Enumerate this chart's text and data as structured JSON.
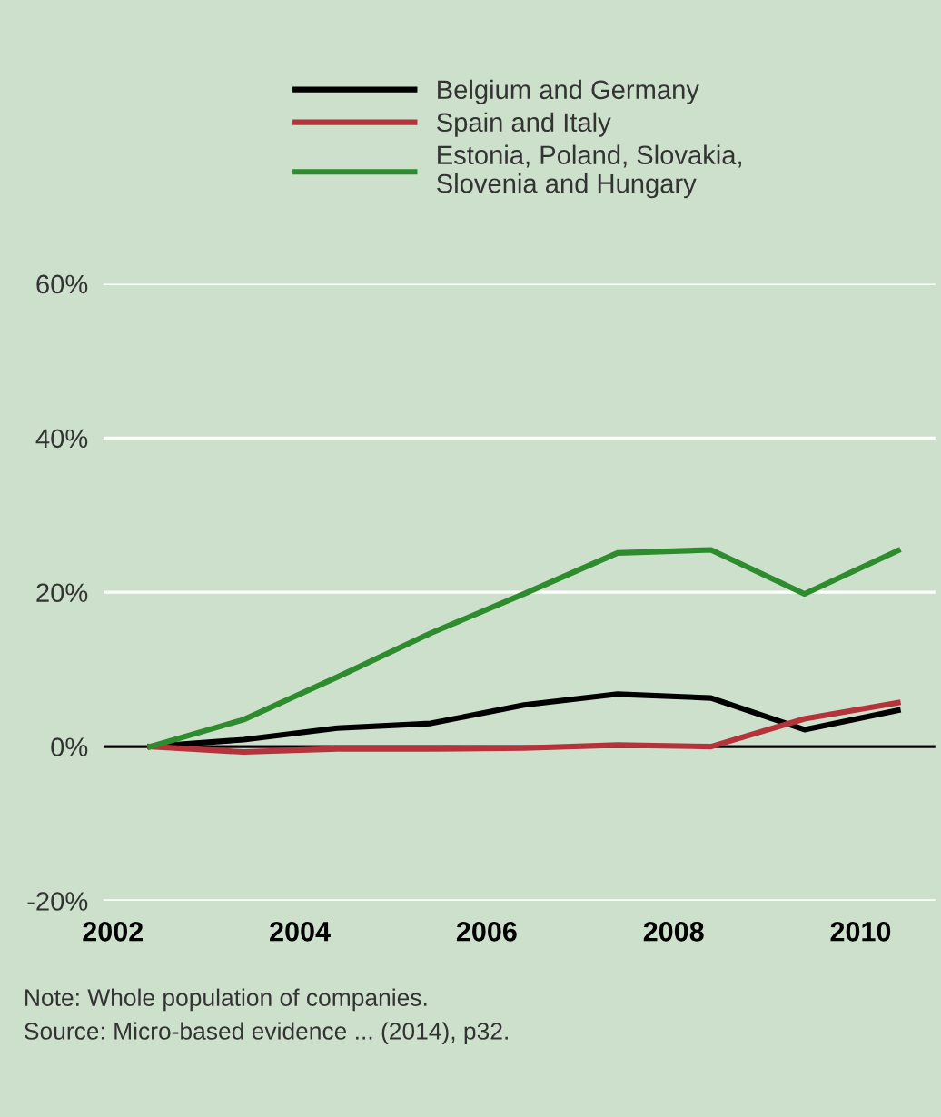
{
  "chart_data": {
    "type": "line",
    "x": [
      2002.4,
      2003.4,
      2004.4,
      2005.4,
      2006.4,
      2007.4,
      2008.4,
      2009.4,
      2010.4
    ],
    "series": [
      {
        "name": "Belgium and Germany",
        "color": "#000000",
        "values": [
          0,
          0.9,
          2.4,
          3.0,
          5.4,
          6.8,
          6.3,
          2.2,
          4.7
        ]
      },
      {
        "name": "Spain and Italy",
        "color": "#b5343c",
        "values": [
          0,
          -0.7,
          -0.3,
          -0.3,
          -0.2,
          0.2,
          0,
          3.6,
          5.7
        ]
      },
      {
        "name": "Estonia, Poland, Slovakia,\nSlovenia and Hungary",
        "color": "#2e8b2e",
        "values": [
          0,
          3.5,
          9.0,
          14.7,
          19.8,
          25.1,
          25.5,
          19.8,
          25.4
        ]
      }
    ],
    "xlim": [
      2001.9,
      2010.8
    ],
    "xticks": [
      2002,
      2004,
      2006,
      2008,
      2010
    ],
    "ylim": [
      -20,
      60
    ],
    "yticks": [
      {
        "value": -20,
        "label": "-20%"
      },
      {
        "value": 0,
        "label": "0%"
      },
      {
        "value": 20,
        "label": "20%"
      },
      {
        "value": 40,
        "label": "40%"
      },
      {
        "value": 60,
        "label": "60%"
      }
    ],
    "ref_lines": [
      {
        "axis": "y",
        "value": 0,
        "color": "#000000"
      }
    ],
    "grid": "y",
    "legend": "top",
    "marker": "none",
    "line_style": "solid",
    "annotations": [
      "Note: Whole population of companies.",
      "Source: Micro-based evidence ... (2014), p32."
    ]
  }
}
